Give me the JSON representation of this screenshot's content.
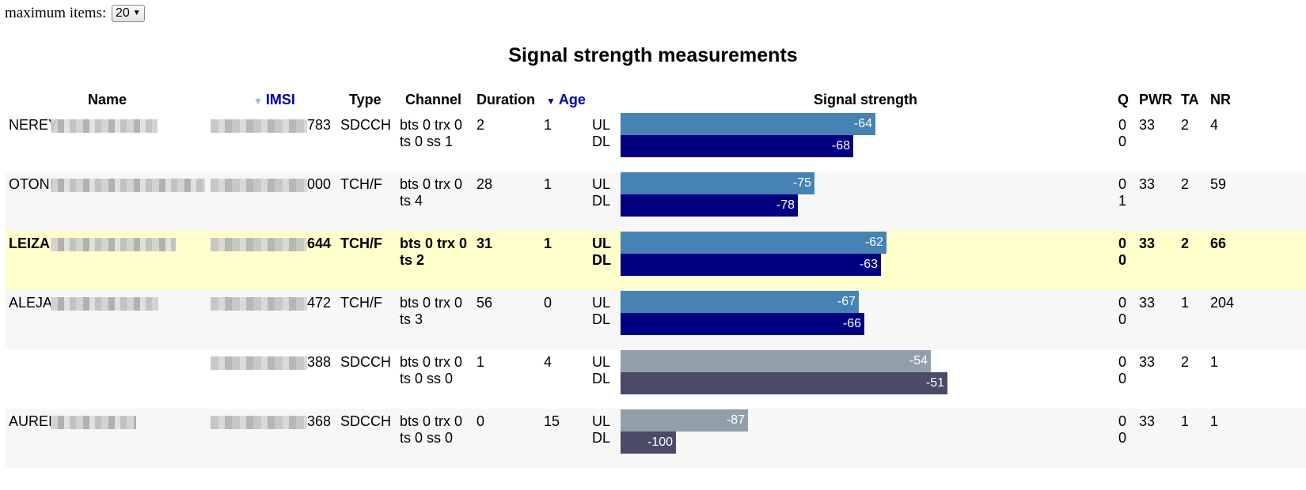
{
  "controls": {
    "max_items_label": "maximum items:",
    "max_items_value": "20",
    "dropdown_icon": "triangle-down"
  },
  "title": "Signal strength measurements",
  "headers": {
    "name": "Name",
    "imsi": "IMSI",
    "type": "Type",
    "channel": "Channel",
    "duration": "Duration",
    "age": "Age",
    "signal": "Signal strength",
    "q": "Q",
    "pwr": "PWR",
    "ta": "TA",
    "nr": "NR"
  },
  "sort": {
    "imsi_indicator": "▼",
    "age_indicator": "▼"
  },
  "colors": {
    "ul_active": "#4682b4",
    "dl_active": "#000080",
    "ul_idle": "#929fab",
    "dl_idle": "#4b4b68",
    "highlight": "#ffffcc",
    "sort_header": "#00009e"
  },
  "signal_scale": {
    "min_dbm": -110,
    "max_dbm": -40
  },
  "rows": [
    {
      "name": "NEREY",
      "imsi": "783",
      "type": "SDCCH",
      "channel_1": "bts 0 trx 0",
      "channel_2": "ts 0 ss 1",
      "duration": "2",
      "age": "1",
      "ul_label": "UL",
      "dl_label": "DL",
      "ul": -64,
      "dl": -68,
      "q_1": "0",
      "q_2": "0",
      "pwr": "33",
      "ta": "2",
      "nr": "4"
    },
    {
      "name": "OTONI",
      "imsi": "000",
      "type": "TCH/F",
      "channel_1": "bts 0 trx 0",
      "channel_2": "ts 4",
      "duration": "28",
      "age": "1",
      "ul_label": "UL",
      "dl_label": "DL",
      "ul": -75,
      "dl": -78,
      "q_1": "0",
      "q_2": "1",
      "pwr": "33",
      "ta": "2",
      "nr": "59"
    },
    {
      "name": "LEIZA",
      "imsi": "644",
      "type": "TCH/F",
      "channel_1": "bts 0 trx 0",
      "channel_2": "ts 2",
      "duration": "31",
      "age": "1",
      "ul_label": "UL",
      "dl_label": "DL",
      "ul": -62,
      "dl": -63,
      "q_1": "0",
      "q_2": "0",
      "pwr": "33",
      "ta": "2",
      "nr": "66"
    },
    {
      "name": "ALEJA",
      "imsi": "472",
      "type": "TCH/F",
      "channel_1": "bts 0 trx 0",
      "channel_2": "ts 3",
      "duration": "56",
      "age": "0",
      "ul_label": "UL",
      "dl_label": "DL",
      "ul": -67,
      "dl": -66,
      "q_1": "0",
      "q_2": "0",
      "pwr": "33",
      "ta": "1",
      "nr": "204"
    },
    {
      "name": "",
      "imsi": "388",
      "type": "SDCCH",
      "channel_1": "bts 0 trx 0",
      "channel_2": "ts 0 ss 0",
      "duration": "1",
      "age": "4",
      "ul_label": "UL",
      "dl_label": "DL",
      "ul": -54,
      "dl": -51,
      "q_1": "0",
      "q_2": "0",
      "pwr": "33",
      "ta": "2",
      "nr": "1"
    },
    {
      "name": "AUREI",
      "imsi": "368",
      "type": "SDCCH",
      "channel_1": "bts 0 trx 0",
      "channel_2": "ts 0 ss 0",
      "duration": "0",
      "age": "15",
      "ul_label": "UL",
      "dl_label": "DL",
      "ul": -87,
      "dl": -100,
      "q_1": "0",
      "q_2": "0",
      "pwr": "33",
      "ta": "1",
      "nr": "1"
    }
  ]
}
